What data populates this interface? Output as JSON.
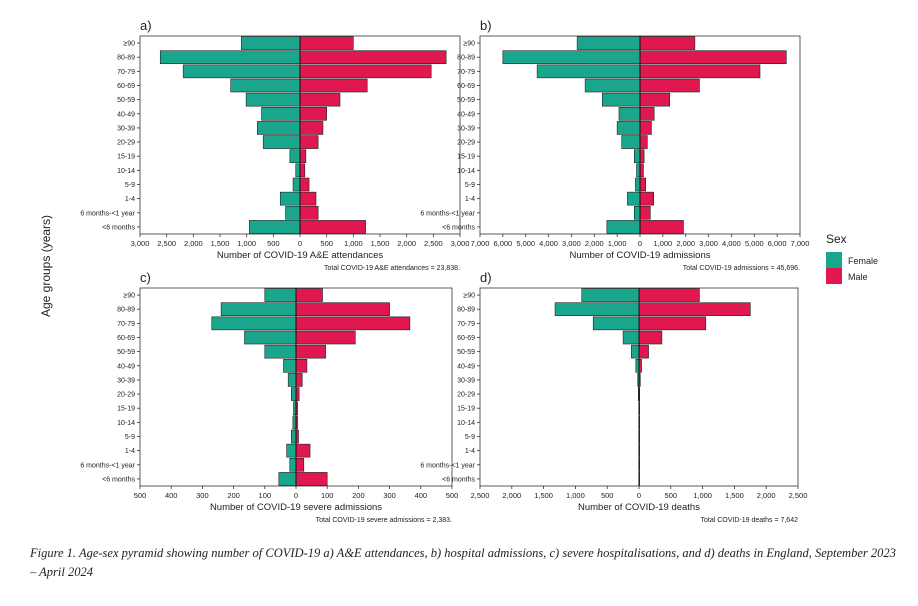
{
  "figure": {
    "y_axis_title": "Age groups (years)",
    "caption": "Figure 1. Age-sex pyramid showing number of COVID-19 a) A&E attendances, b) hospital admissions, c) severe hospitalisations, and d) deaths in England, September 2023 – April 2024"
  },
  "legend": {
    "title": "Sex",
    "items": [
      {
        "label": "Female",
        "color": "#1aa68c"
      },
      {
        "label": "Male",
        "color": "#e0184f"
      }
    ]
  },
  "chart_data": [
    {
      "type": "bar",
      "panel": "a)",
      "orientation": "horizontal-pyramid",
      "categories": [
        "≥90",
        "80-89",
        "70-79",
        "60-69",
        "50-59",
        "40-49",
        "30-39",
        "20-29",
        "15-19",
        "10-14",
        "5-9",
        "1-4",
        "6 months-<1 year",
        "<6 months"
      ],
      "series": [
        {
          "name": "Female",
          "values": [
            1100,
            2620,
            2190,
            1300,
            1010,
            720,
            800,
            690,
            190,
            80,
            130,
            370,
            270,
            950
          ]
        },
        {
          "name": "Male",
          "values": [
            1000,
            2740,
            2460,
            1260,
            750,
            500,
            430,
            340,
            110,
            90,
            170,
            300,
            340,
            1230
          ]
        }
      ],
      "xlabel": "Number of COVID-19 A&E attendances",
      "xlim": [
        -3000,
        3000
      ],
      "ticks": [
        -3000,
        -2500,
        -2000,
        -1500,
        -1000,
        -500,
        0,
        500,
        1000,
        1500,
        2000,
        2500,
        3000
      ],
      "tick_labels": [
        "3,000",
        "2,500",
        "2,000",
        "1,500",
        "1,000",
        "500",
        "0",
        "500",
        "1,000",
        "1,500",
        "2,000",
        "2,500",
        "3,000"
      ],
      "total_note": "Total COVID-19 A&E attendances = 23,838."
    },
    {
      "type": "bar",
      "panel": "b)",
      "orientation": "horizontal-pyramid",
      "categories": [
        "≥90",
        "80-89",
        "70-79",
        "60-69",
        "50-59",
        "40-49",
        "30-39",
        "20-29",
        "15-19",
        "10-14",
        "5-9",
        "1-4",
        "6 months-<1 year",
        "<6 months"
      ],
      "series": [
        {
          "name": "Female",
          "values": [
            2750,
            6000,
            4500,
            2400,
            1650,
            920,
            1000,
            800,
            250,
            150,
            200,
            550,
            250,
            1450
          ]
        },
        {
          "name": "Male",
          "values": [
            2400,
            6400,
            5250,
            2600,
            1300,
            620,
            500,
            320,
            180,
            150,
            250,
            600,
            450,
            1900
          ]
        }
      ],
      "xlabel": "Number of COVID-19 admissions",
      "xlim": [
        -7000,
        7000
      ],
      "ticks": [
        -7000,
        -6000,
        -5000,
        -4000,
        -3000,
        -2000,
        -1000,
        0,
        1000,
        2000,
        3000,
        4000,
        5000,
        6000,
        7000
      ],
      "tick_labels": [
        "7,000",
        "6,000",
        "5,000",
        "4,000",
        "3,000",
        "2,000",
        "1,000",
        "0",
        "1,000",
        "2,000",
        "3,000",
        "4,000",
        "5,000",
        "6,000",
        "7,000"
      ],
      "total_note": "Total COVID-19 admissions = 45,696."
    },
    {
      "type": "bar",
      "panel": "c)",
      "orientation": "horizontal-pyramid",
      "categories": [
        "≥90",
        "80-89",
        "70-79",
        "60-69",
        "50-59",
        "40-49",
        "30-39",
        "20-29",
        "15-19",
        "10-14",
        "5-9",
        "1-4",
        "6 months-<1 year",
        "<6 months"
      ],
      "series": [
        {
          "name": "Female",
          "values": [
            100,
            240,
            270,
            165,
            100,
            40,
            25,
            15,
            8,
            10,
            15,
            30,
            20,
            55
          ]
        },
        {
          "name": "Male",
          "values": [
            85,
            300,
            365,
            190,
            95,
            35,
            20,
            10,
            5,
            5,
            8,
            45,
            25,
            100
          ]
        }
      ],
      "xlabel": "Number of COVID-19 severe admissions",
      "xlim": [
        -500,
        500
      ],
      "ticks": [
        -500,
        -400,
        -300,
        -200,
        -100,
        0,
        100,
        200,
        300,
        400,
        500
      ],
      "tick_labels": [
        "500",
        "400",
        "300",
        "200",
        "100",
        "0",
        "100",
        "200",
        "300",
        "400",
        "500"
      ],
      "total_note": "Total COVID-19 severe admissions = 2,383."
    },
    {
      "type": "bar",
      "panel": "d)",
      "orientation": "horizontal-pyramid",
      "categories": [
        "≥90",
        "80-89",
        "70-79",
        "60-69",
        "50-59",
        "40-49",
        "30-39",
        "20-29",
        "15-19",
        "10-14",
        "5-9",
        "1-4",
        "6 months-<1 year",
        "<6 months"
      ],
      "series": [
        {
          "name": "Female",
          "values": [
            900,
            1320,
            720,
            250,
            120,
            50,
            20,
            10,
            2,
            2,
            2,
            2,
            2,
            2
          ]
        },
        {
          "name": "Male",
          "values": [
            950,
            1750,
            1050,
            360,
            150,
            40,
            20,
            10,
            2,
            2,
            2,
            2,
            2,
            2
          ]
        }
      ],
      "xlabel": "Number of COVID-19 deaths",
      "xlim": [
        -2500,
        2500
      ],
      "ticks": [
        -2500,
        -2000,
        -1500,
        -1000,
        -500,
        0,
        500,
        1000,
        1500,
        2000,
        2500
      ],
      "tick_labels": [
        "2,500",
        "2,000",
        "1,500",
        "1,000",
        "500",
        "0",
        "500",
        "1,000",
        "1,500",
        "2,000",
        "2,500"
      ],
      "total_note": "Total COVID-19 deaths = 7,642"
    }
  ]
}
